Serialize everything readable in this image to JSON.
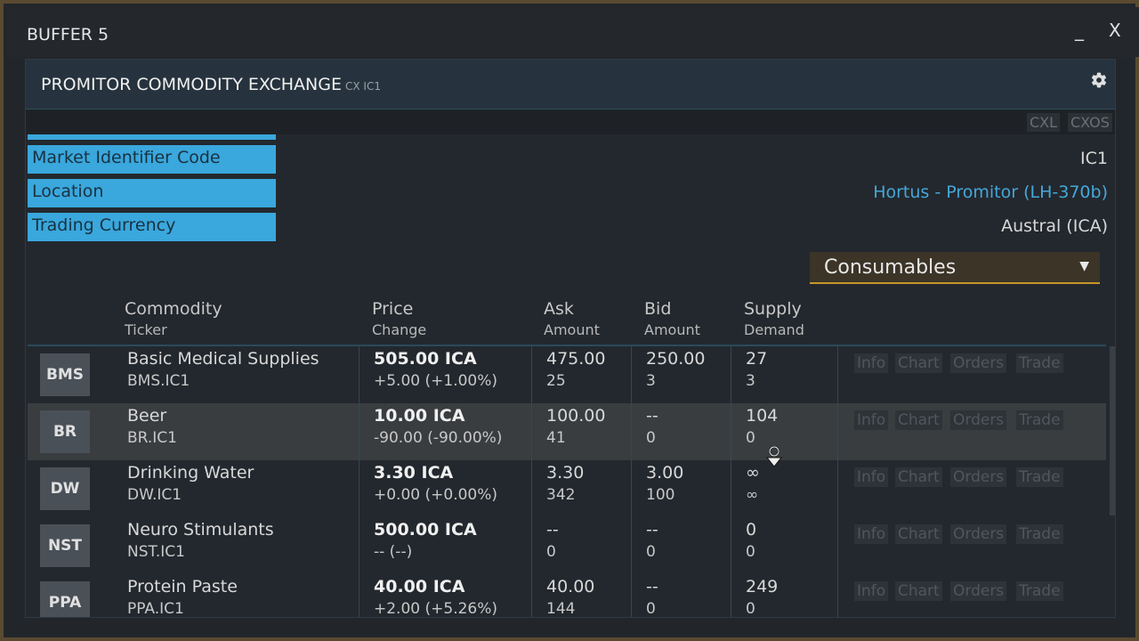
{
  "window": {
    "title": "BUFFER 5",
    "minimize_label": "_",
    "close_label": "X"
  },
  "tile": {
    "title": "PROMITOR COMMODITY EXCHANGE",
    "subtitle": "CX IC1",
    "settings_icon": "gear-icon",
    "commands": [
      "CXL",
      "CXOS"
    ]
  },
  "info": [
    {
      "label": "Market Identifier Code",
      "value": "IC1",
      "is_link": false
    },
    {
      "label": "Location",
      "value": "Hortus - Promitor (LH-370b)",
      "is_link": true
    },
    {
      "label": "Trading Currency",
      "value": "Austral (ICA)",
      "is_link": false
    }
  ],
  "category_select": {
    "value": "Consumables",
    "arrow": "▼"
  },
  "columns": {
    "commodity": {
      "top": "Commodity",
      "bottom": "Ticker"
    },
    "price": {
      "top": "Price",
      "bottom": "Change"
    },
    "ask": {
      "top": "Ask",
      "bottom": "Amount"
    },
    "bid": {
      "top": "Bid",
      "bottom": "Amount"
    },
    "supply": {
      "top": "Supply",
      "bottom": "Demand"
    }
  },
  "actions": [
    "Info",
    "Chart",
    "Orders",
    "Trade"
  ],
  "rows": [
    {
      "badge": "BMS",
      "name": "Basic Medical Supplies",
      "ticker": "BMS.IC1",
      "price": "505.00 ICA",
      "change": "+5.00 (+1.00%)",
      "change_dir": "pos",
      "ask": "475.00",
      "ask_amount": "25",
      "bid": "250.00",
      "bid_amount": "3",
      "supply": "27",
      "demand": "3",
      "selected": false
    },
    {
      "badge": "BR",
      "name": "Beer",
      "ticker": "BR.IC1",
      "price": "10.00 ICA",
      "change": "-90.00 (-90.00%)",
      "change_dir": "neg",
      "ask": "100.00",
      "ask_amount": "41",
      "bid": "--",
      "bid_amount": "0",
      "supply": "104",
      "demand": "0",
      "selected": true
    },
    {
      "badge": "DW",
      "name": "Drinking Water",
      "ticker": "DW.IC1",
      "price": "3.30 ICA",
      "change": "+0.00 (+0.00%)",
      "change_dir": "neutral",
      "ask": "3.30",
      "ask_amount": "342",
      "bid": "3.00",
      "bid_amount": "100",
      "supply": "∞",
      "demand": "∞",
      "selected": false
    },
    {
      "badge": "NST",
      "name": "Neuro Stimulants",
      "ticker": "NST.IC1",
      "price": "500.00 ICA",
      "change": "-- (--)",
      "change_dir": "neutral",
      "ask": "--",
      "ask_amount": "0",
      "bid": "--",
      "bid_amount": "0",
      "supply": "0",
      "demand": "0",
      "selected": false
    },
    {
      "badge": "PPA",
      "name": "Protein Paste",
      "ticker": "PPA.IC1",
      "price": "40.00 ICA",
      "change": "+2.00 (+5.26%)",
      "change_dir": "pos",
      "ask": "40.00",
      "ask_amount": "144",
      "bid": "--",
      "bid_amount": "0",
      "supply": "249",
      "demand": "0",
      "selected": false
    }
  ],
  "colors": {
    "accent_blue": "#3aa7dd",
    "positive": "#5cc85c",
    "negative": "#e04a4a",
    "dropdown_border": "#c8962a"
  }
}
